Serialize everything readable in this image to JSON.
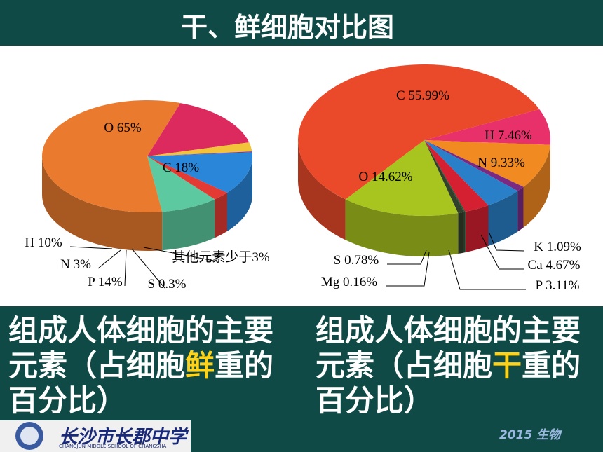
{
  "title": "干、鲜细胞对比图",
  "chart_data": [
    {
      "type": "pie",
      "labels": [
        "C 18%",
        "其他元素少于3%",
        "S 0.3%",
        "P 14%",
        "N 3%",
        "H 10%",
        "O 65%"
      ],
      "values": [
        18,
        3,
        0.3,
        14,
        3,
        10,
        65
      ],
      "colors": [
        "#dc2a5e",
        "#f2c23a",
        "#7b3a9a",
        "#2a86d8",
        "#e33a34",
        "#5cc9a0",
        "#ea7a2e"
      ]
    },
    {
      "type": "pie",
      "labels": [
        "H 7.46%",
        "N 9.33%",
        "K 1.09%",
        "Ca 4.67%",
        "P 3.11%",
        "Mg 0.16%",
        "S 0.78%",
        "O 14.62%",
        "C 55.99%"
      ],
      "values": [
        7.46,
        9.33,
        1.09,
        4.67,
        3.11,
        0.16,
        0.78,
        14.62,
        55.99
      ],
      "colors": [
        "#e8306a",
        "#f28a22",
        "#7a2a82",
        "#2a80c8",
        "#d42030",
        "#1e5a3a",
        "#30402a",
        "#a8c41e",
        "#ea4a2a"
      ]
    }
  ],
  "captions": [
    {
      "parts": [
        "组成人体细胞的主要元素（占细胞",
        "鲜",
        "重的百分比）"
      ]
    },
    {
      "parts": [
        "组成人体细胞的主要元素（占细胞",
        "干",
        "重的百分比）"
      ]
    }
  ],
  "footer": {
    "school": "长沙市长郡中学",
    "school_en": "CHANGJUN MIDDLE SCHOOL OF CHANGSHA",
    "badge": "2015 生物"
  }
}
